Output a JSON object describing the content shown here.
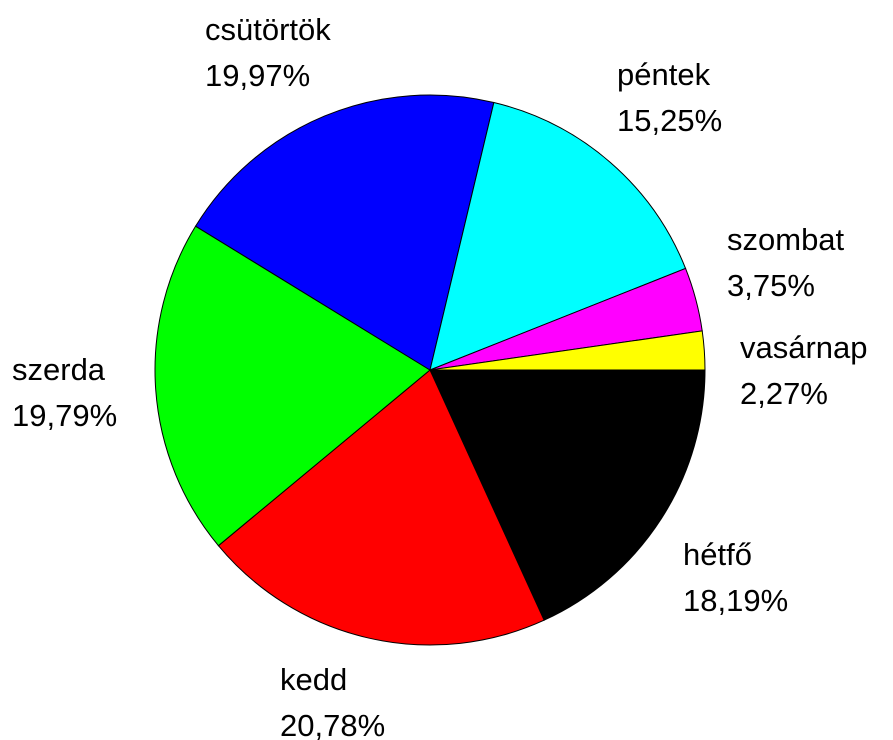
{
  "chart_data": {
    "type": "pie",
    "categories": [
      "hétfő",
      "kedd",
      "szerda",
      "csütörtök",
      "péntek",
      "szombat",
      "vasárnap"
    ],
    "values": [
      18.19,
      20.78,
      19.79,
      19.97,
      15.25,
      3.75,
      2.27
    ],
    "value_labels": [
      "18,19%",
      "20,78%",
      "19,79%",
      "19,97%",
      "15,25%",
      "3,75%",
      "2,27%"
    ],
    "colors": [
      "#000000",
      "#ff0000",
      "#00ff00",
      "#0000ff",
      "#00ffff",
      "#ff00ff",
      "#ffff00"
    ]
  }
}
